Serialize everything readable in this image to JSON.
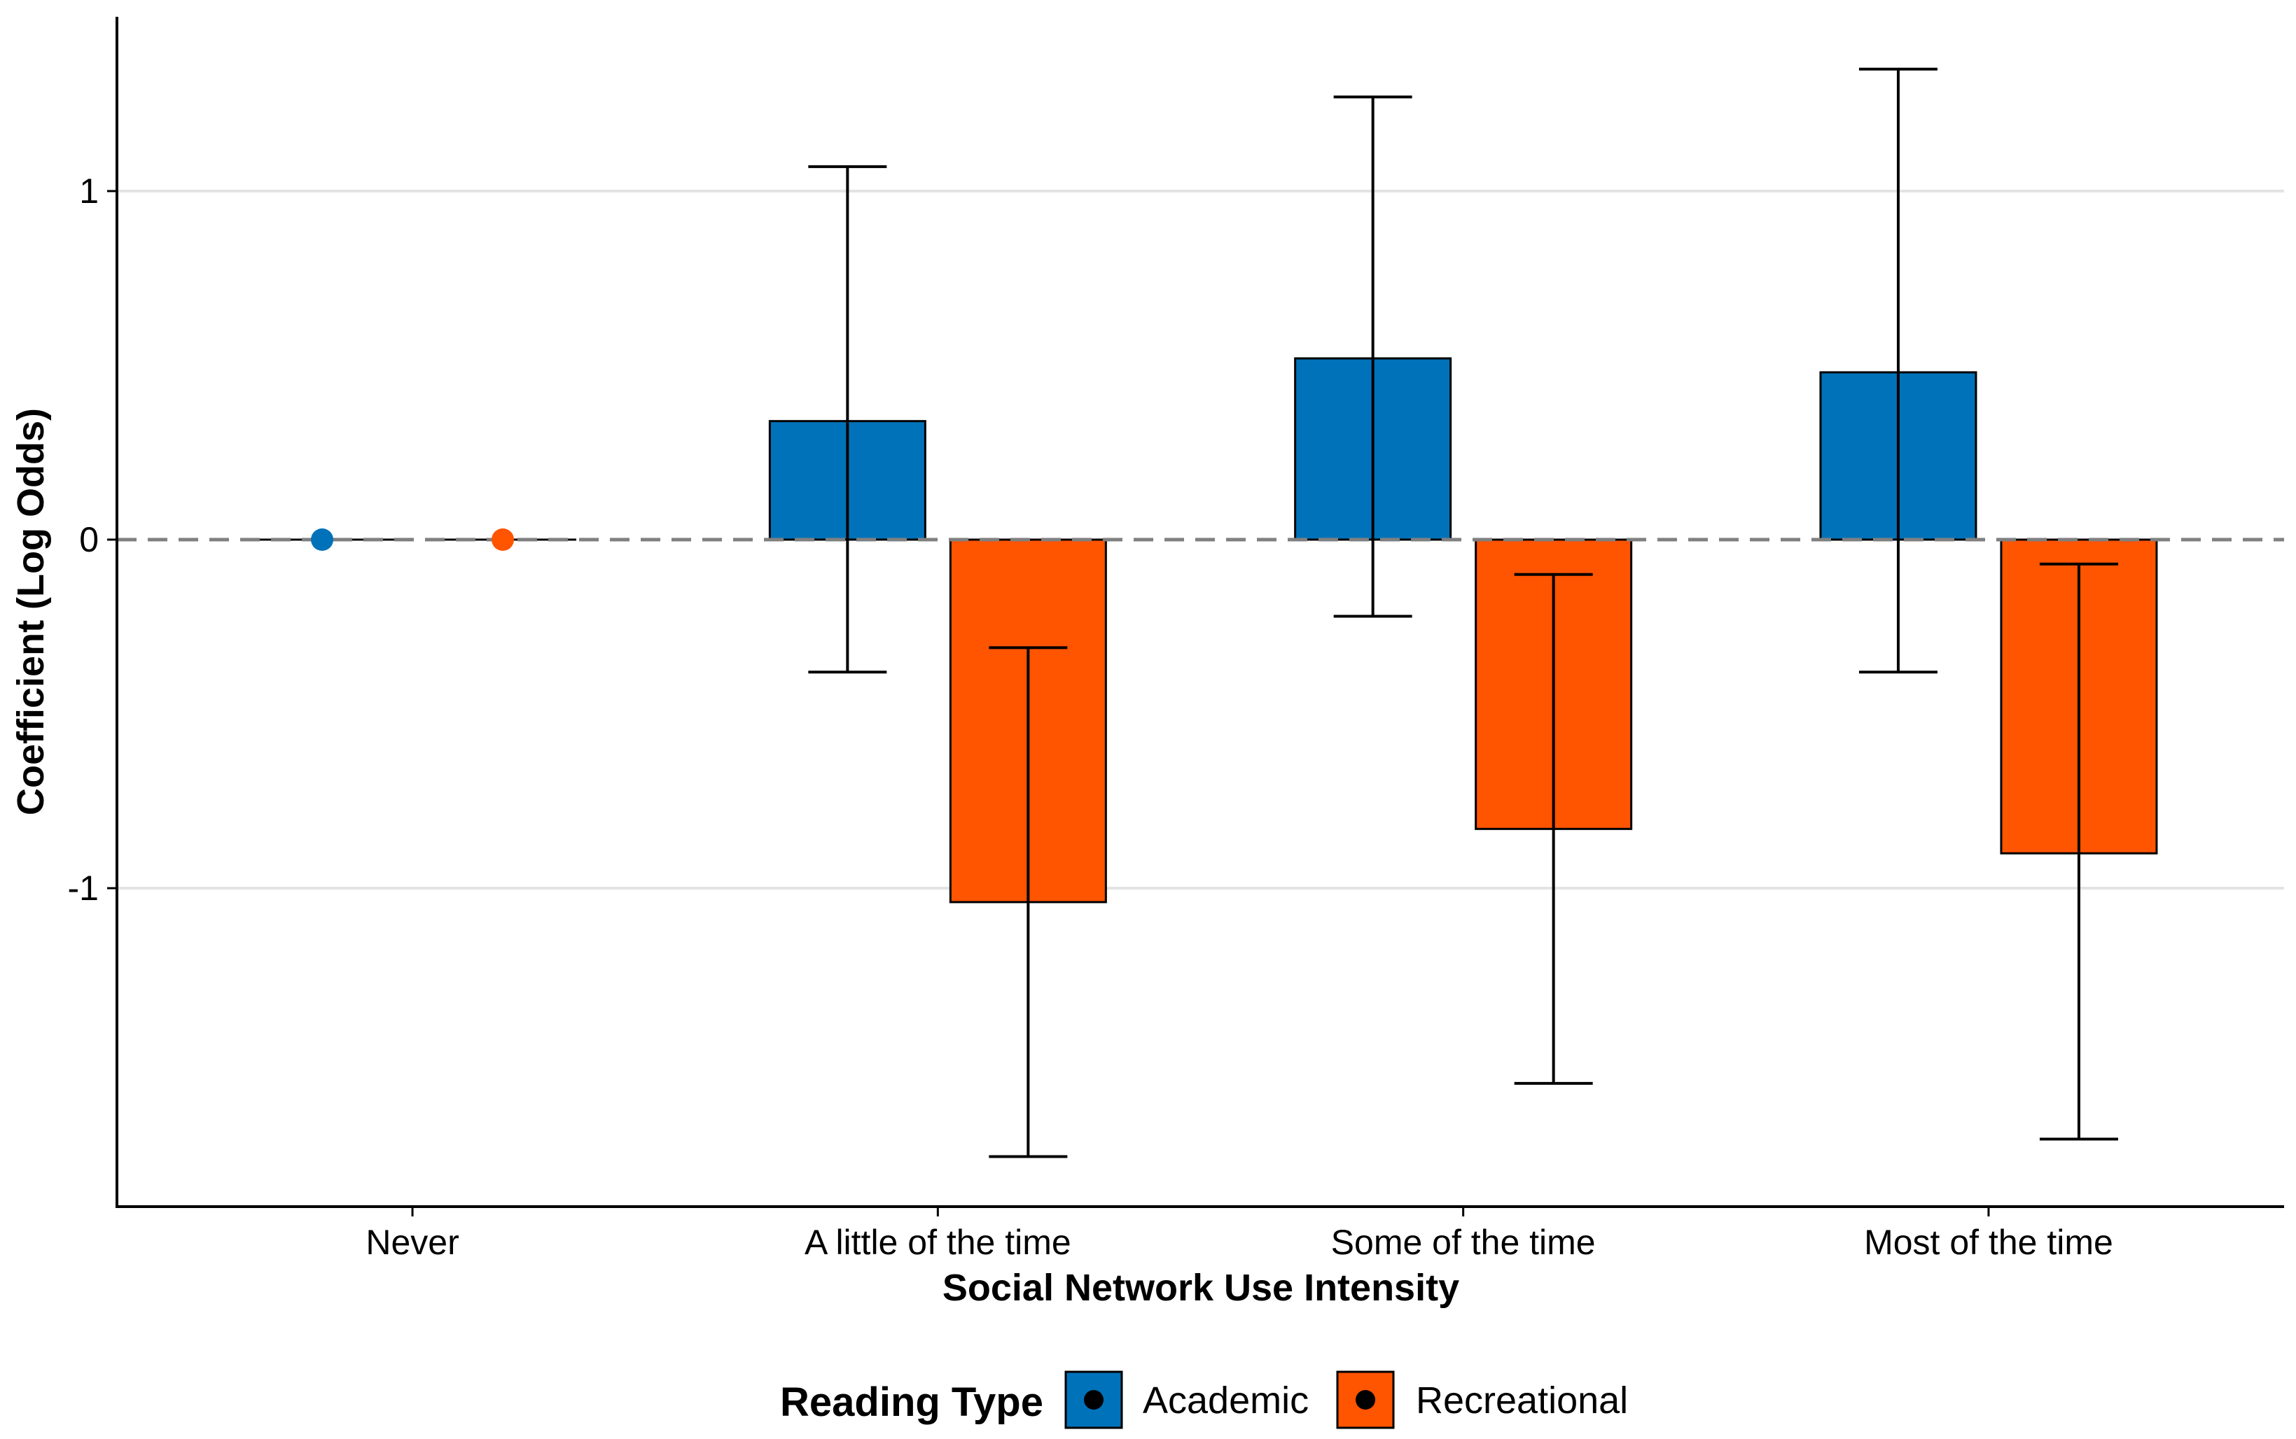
{
  "chart_data": {
    "type": "bar",
    "title": "",
    "xlabel": "Social Network Use Intensity",
    "ylabel": "Coefficient (Log Odds)",
    "ylim": [
      -1.92,
      1.5
    ],
    "yticks": [
      {
        "value": 1,
        "label": "1"
      },
      {
        "value": 0,
        "label": "0"
      },
      {
        "value": -1,
        "label": "-1"
      }
    ],
    "grid": "horizontal-major",
    "reference_line": {
      "value": 0,
      "style": "dashed",
      "color": "#808080"
    },
    "categories": [
      "Never",
      "A little of the time",
      "Some of the time",
      "Most of the time"
    ],
    "series": [
      {
        "name": "Academic",
        "color": "#0072B9",
        "values": [
          0,
          0.34,
          0.52,
          0.48
        ],
        "ci_lower": [
          0,
          -0.38,
          -0.22,
          -0.38
        ],
        "ci_upper": [
          0,
          1.07,
          1.27,
          1.35
        ],
        "reference_marker": [
          true,
          false,
          false,
          false
        ]
      },
      {
        "name": "Recreational",
        "color": "#FF5400",
        "values": [
          0,
          -1.04,
          -0.83,
          -0.9
        ],
        "ci_lower": [
          0,
          -1.77,
          -1.56,
          -1.72
        ],
        "ci_upper": [
          0,
          -0.31,
          -0.1,
          -0.07
        ],
        "reference_marker": [
          true,
          false,
          false,
          false
        ]
      }
    ],
    "legend": {
      "title": "Reading Type",
      "position": "bottom",
      "entries": [
        "Academic",
        "Recreational"
      ]
    }
  }
}
